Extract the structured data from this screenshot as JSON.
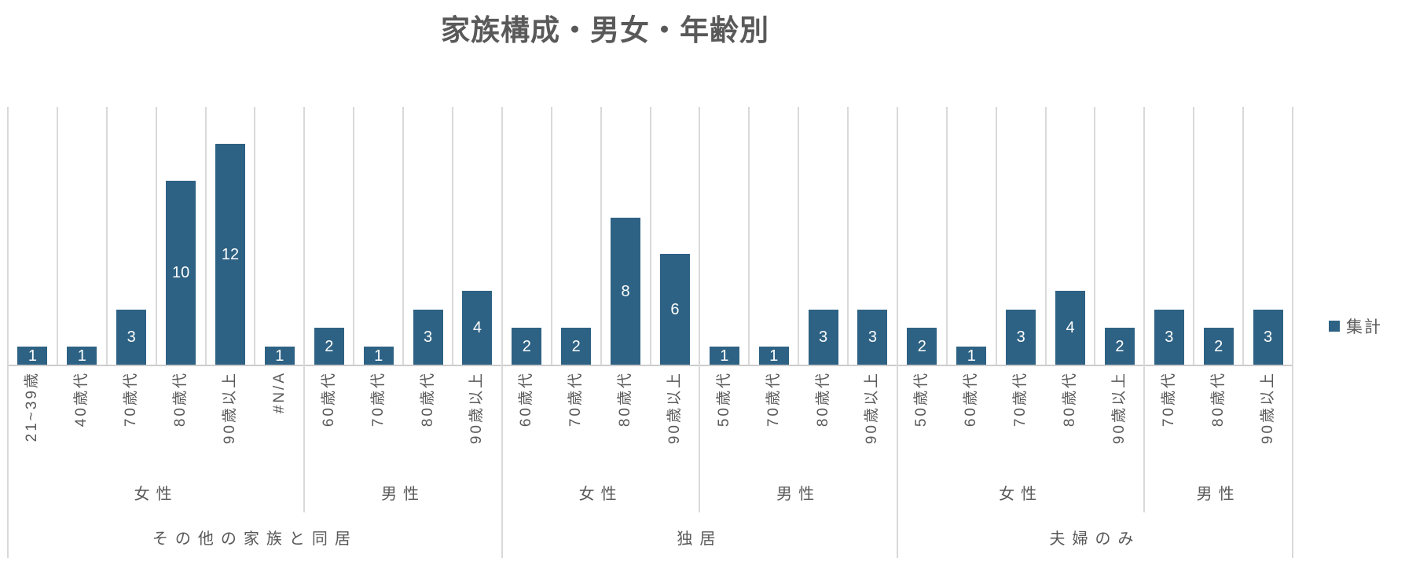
{
  "chart_data": {
    "type": "bar",
    "title": "家族構成・男女・年齢別",
    "legend_entries": [
      "集計"
    ],
    "legend_position": "right",
    "ylim": [
      0,
      14
    ],
    "y_axis_labels_visible": false,
    "grid": "vertical-category-separators",
    "data_label_position": "inside-center",
    "groups": [
      {
        "family": "その他の家族と同居",
        "genders": [
          {
            "gender": "女性",
            "categories": [
              "21~39歳",
              "40歳代",
              "70歳代",
              "80歳代",
              "90歳以上",
              "#N/A"
            ],
            "values": [
              1,
              1,
              3,
              10,
              12,
              1
            ]
          },
          {
            "gender": "男性",
            "categories": [
              "60歳代",
              "70歳代",
              "80歳代",
              "90歳以上"
            ],
            "values": [
              2,
              1,
              3,
              4
            ]
          }
        ]
      },
      {
        "family": "独居",
        "genders": [
          {
            "gender": "女性",
            "categories": [
              "60歳代",
              "70歳代",
              "80歳代",
              "90歳以上"
            ],
            "values": [
              2,
              2,
              8,
              6
            ]
          },
          {
            "gender": "男性",
            "categories": [
              "50歳代",
              "70歳代",
              "80歳代",
              "90歳以上"
            ],
            "values": [
              1,
              1,
              3,
              3
            ]
          }
        ]
      },
      {
        "family": "夫婦のみ",
        "genders": [
          {
            "gender": "女性",
            "categories": [
              "50歳代",
              "60歳代",
              "70歳代",
              "80歳代",
              "90歳以上"
            ],
            "values": [
              2,
              1,
              3,
              4,
              2
            ]
          },
          {
            "gender": "男性",
            "categories": [
              "70歳代",
              "80歳代",
              "90歳以上"
            ],
            "values": [
              3,
              2,
              3
            ]
          }
        ]
      }
    ]
  },
  "colors": {
    "bar": "#2E6284",
    "gridline": "#D9D9D9",
    "axis_line": "#CCCCCC",
    "text": "#595959",
    "data_label": "#FFFFFF",
    "background": "#FFFFFF"
  }
}
